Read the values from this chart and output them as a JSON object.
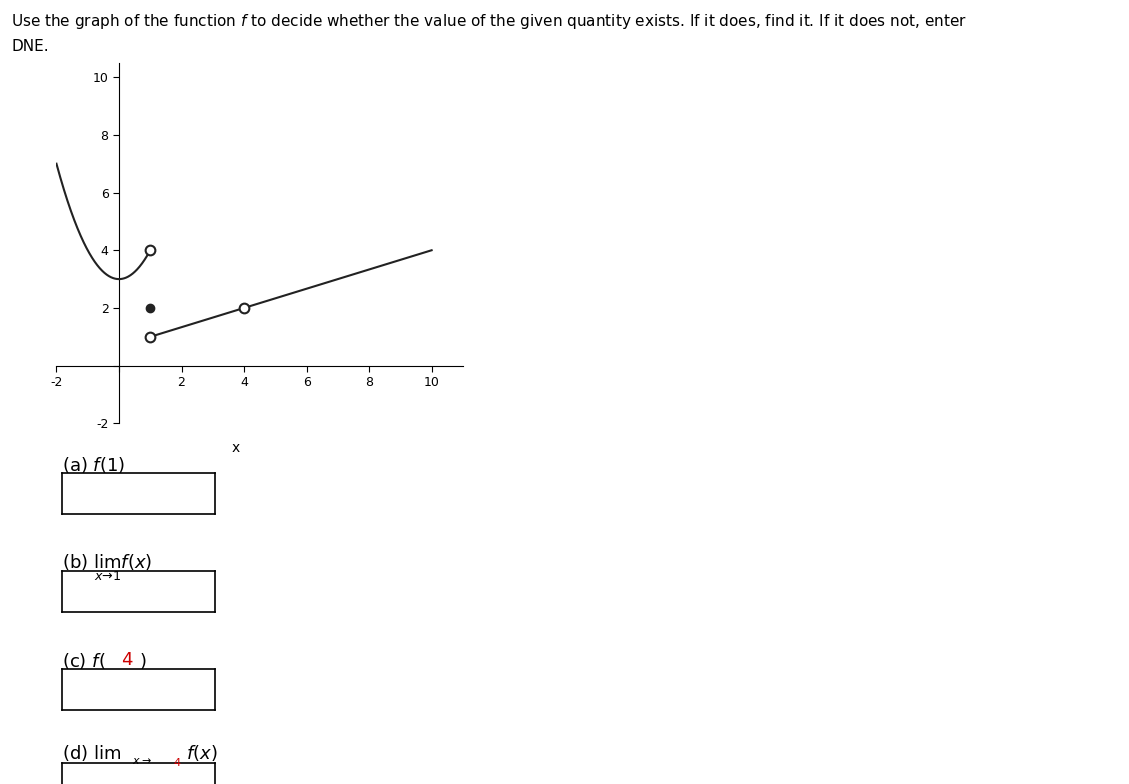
{
  "xlim": [
    -2,
    11
  ],
  "ylim": [
    -2,
    10.5
  ],
  "xticks": [
    -2,
    0,
    2,
    4,
    6,
    8,
    10
  ],
  "yticks": [
    -2,
    0,
    2,
    4,
    6,
    8,
    10
  ],
  "xlabel": "x",
  "curve_color": "#222222",
  "open_circle_facecolor": "white",
  "open_circle_edgecolor": "#222222",
  "filled_dot_color": "#222222",
  "line_color": "#222222",
  "title_line1": "Use the graph of the function $f$ to decide whether the value of the given quantity exists. If it does, find it. If it does not, enter",
  "title_line2": "DNE.",
  "label_a": "(a) $f(1)$",
  "label_b_pre": "(b) ",
  "label_c_pre": "(c) $f($",
  "label_c_num": "4",
  "label_c_post": "$)$",
  "label_d_pre": "(d) ",
  "red_color": "#cc0000"
}
